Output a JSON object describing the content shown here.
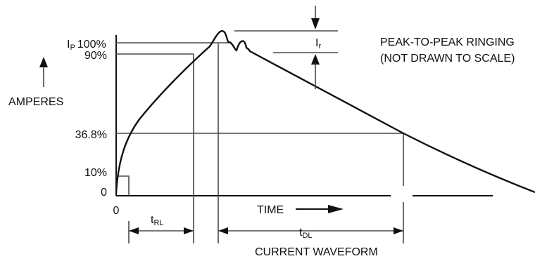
{
  "diagram": {
    "y_labels": {
      "ip_prefix": "I",
      "ip_sub": "P",
      "ip_pct": "100%",
      "p90": "90%",
      "p368": "36.8%",
      "p10": "10%",
      "p0": "0"
    },
    "x_origin": "0",
    "amperes_label": "AMPERES",
    "ringing_note_line1": "PEAK-TO-PEAK RINGING",
    "ringing_note_line2": "(NOT DRAWN TO SCALE)",
    "ir_main": "I",
    "ir_sub": "r",
    "time_label": "TIME",
    "trl_main": "t",
    "trl_sub": "RL",
    "tdl_main": "t",
    "tdl_sub": "DL",
    "caption": "CURRENT WAVEFORM"
  }
}
